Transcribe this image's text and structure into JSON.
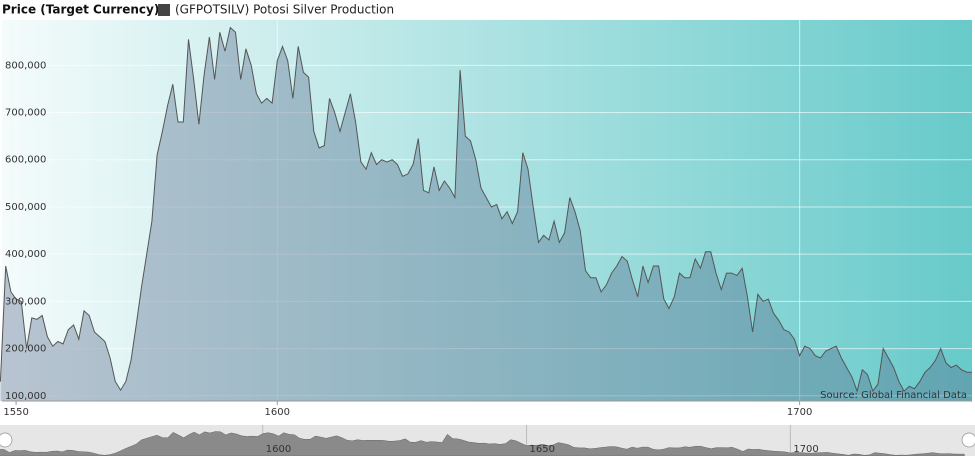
{
  "chart_data": {
    "type": "area",
    "title": "Price (Target Currency)",
    "annotation": "Source: Global Financial Data",
    "grid": true,
    "x": [
      1547,
      1548,
      1549,
      1550,
      1551,
      1552,
      1553,
      1554,
      1555,
      1556,
      1557,
      1558,
      1559,
      1560,
      1561,
      1562,
      1563,
      1564,
      1565,
      1566,
      1567,
      1568,
      1569,
      1570,
      1571,
      1572,
      1573,
      1574,
      1575,
      1576,
      1577,
      1578,
      1579,
      1580,
      1581,
      1582,
      1583,
      1584,
      1585,
      1586,
      1587,
      1588,
      1589,
      1590,
      1591,
      1592,
      1593,
      1594,
      1595,
      1596,
      1597,
      1598,
      1599,
      1600,
      1601,
      1602,
      1603,
      1604,
      1605,
      1606,
      1607,
      1608,
      1609,
      1610,
      1611,
      1612,
      1613,
      1614,
      1615,
      1616,
      1617,
      1618,
      1619,
      1620,
      1621,
      1622,
      1623,
      1624,
      1625,
      1626,
      1627,
      1628,
      1629,
      1630,
      1631,
      1632,
      1633,
      1634,
      1635,
      1636,
      1637,
      1638,
      1639,
      1640,
      1641,
      1642,
      1643,
      1644,
      1645,
      1646,
      1647,
      1648,
      1649,
      1650,
      1651,
      1652,
      1653,
      1654,
      1655,
      1656,
      1657,
      1658,
      1659,
      1660,
      1661,
      1662,
      1663,
      1664,
      1665,
      1666,
      1667,
      1668,
      1669,
      1670,
      1671,
      1672,
      1673,
      1674,
      1675,
      1676,
      1677,
      1678,
      1679,
      1680,
      1681,
      1682,
      1683,
      1684,
      1685,
      1686,
      1687,
      1688,
      1689,
      1690,
      1691,
      1692,
      1693,
      1694,
      1695,
      1696,
      1697,
      1698,
      1699,
      1700,
      1701,
      1702,
      1703,
      1704,
      1705,
      1706,
      1707,
      1708,
      1709,
      1710,
      1711,
      1712,
      1713,
      1714,
      1715,
      1716,
      1717,
      1718,
      1719,
      1720,
      1721,
      1722,
      1723,
      1724,
      1725,
      1726,
      1727,
      1728,
      1729,
      1730,
      1731,
      1732,
      1733
    ],
    "series": [
      {
        "name": "(GFPOTSILV) Potosi Silver Production",
        "color": "#444444",
        "values": [
          130000,
          375000,
          320000,
          305000,
          300000,
          200000,
          265000,
          262000,
          270000,
          225000,
          205000,
          215000,
          210000,
          240000,
          250000,
          220000,
          280000,
          270000,
          235000,
          225000,
          215000,
          180000,
          130000,
          112000,
          130000,
          175000,
          250000,
          330000,
          400000,
          470000,
          610000,
          660000,
          715000,
          760000,
          680000,
          680000,
          855000,
          770000,
          675000,
          780000,
          860000,
          770000,
          870000,
          830000,
          880000,
          870000,
          770000,
          835000,
          800000,
          740000,
          720000,
          730000,
          720000,
          810000,
          840000,
          810000,
          730000,
          840000,
          785000,
          775000,
          660000,
          625000,
          630000,
          730000,
          700000,
          660000,
          700000,
          740000,
          680000,
          595000,
          580000,
          615000,
          590000,
          600000,
          595000,
          600000,
          590000,
          565000,
          570000,
          590000,
          645000,
          535000,
          530000,
          585000,
          535000,
          555000,
          540000,
          520000,
          790000,
          650000,
          640000,
          600000,
          540000,
          520000,
          500000,
          505000,
          475000,
          490000,
          465000,
          490000,
          615000,
          580000,
          500000,
          425000,
          440000,
          430000,
          470000,
          425000,
          445000,
          520000,
          490000,
          450000,
          365000,
          350000,
          350000,
          320000,
          335000,
          360000,
          375000,
          395000,
          385000,
          345000,
          310000,
          375000,
          340000,
          375000,
          375000,
          305000,
          285000,
          310000,
          360000,
          350000,
          350000,
          390000,
          370000,
          405000,
          405000,
          360000,
          325000,
          360000,
          360000,
          355000,
          370000,
          310000,
          235000,
          315000,
          300000,
          305000,
          275000,
          260000,
          240000,
          235000,
          220000,
          185000,
          205000,
          200000,
          185000,
          180000,
          195000,
          200000,
          205000,
          180000,
          160000,
          140000,
          110000,
          155000,
          145000,
          110000,
          125000,
          200000,
          180000,
          160000,
          130000,
          110000,
          120000,
          115000,
          130000,
          150000,
          160000,
          175000,
          200000,
          170000,
          160000,
          165000,
          155000,
          150000,
          150000
        ]
      }
    ],
    "xlim": [
      1547.3,
      1733
    ],
    "ylim": [
      89000,
      896000
    ],
    "xticks": [
      1550,
      1600,
      1700
    ],
    "yticks": [
      {
        "value": 100000,
        "label": "100,000"
      },
      {
        "value": 200000,
        "label": "200,000"
      },
      {
        "value": 300000,
        "label": "300,000"
      },
      {
        "value": 400000,
        "label": "400,000"
      },
      {
        "value": 500000,
        "label": "500,000"
      },
      {
        "value": 600000,
        "label": "600,000"
      },
      {
        "value": 700000,
        "label": "700,000"
      },
      {
        "value": 800000,
        "label": "800,000"
      }
    ],
    "navigator": {
      "xlim": [
        1550.2,
        1735
      ],
      "xticks": [
        1600,
        1650,
        1700
      ]
    }
  }
}
